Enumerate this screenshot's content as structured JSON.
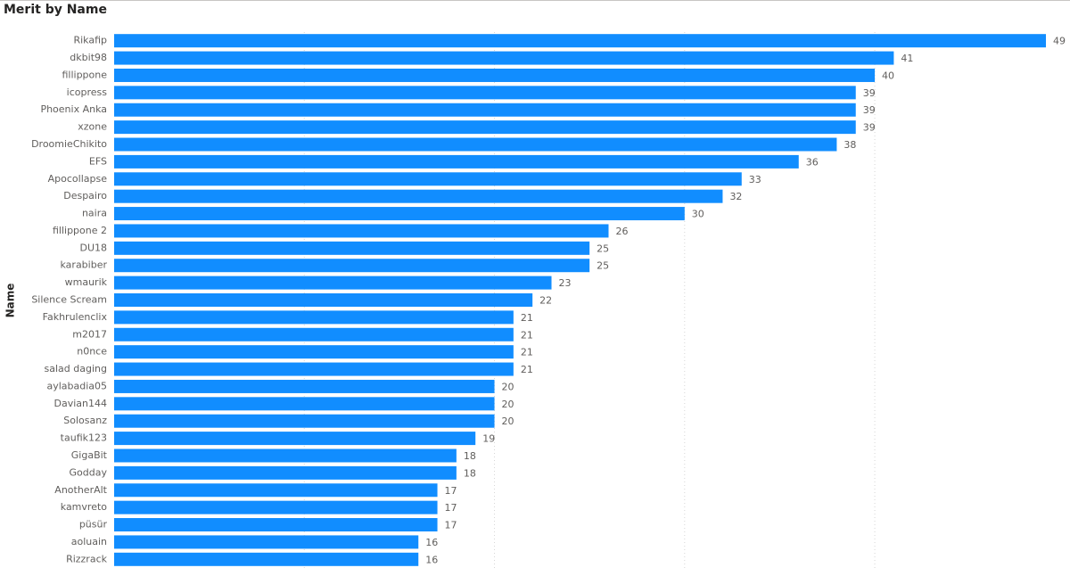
{
  "chart_data": {
    "type": "bar",
    "orientation": "horizontal",
    "title": "Merit by Name",
    "y_label": "Name",
    "categories": [
      "Rikafip",
      "dkbit98",
      "fillippone",
      "icopress",
      "Phoenix Anka",
      "xzone",
      "DroomieChikito",
      "EFS",
      "Apocollapse",
      "Despairo",
      "naira",
      "fillippone 2",
      "DU18",
      "karabiber",
      "wmaurik",
      "Silence Scream",
      "Fakhrulenclix",
      "m2017",
      "n0nce",
      "salad daging",
      "aylabadia05",
      "Davian144",
      "Solosanz",
      "taufik123",
      "GigaBit",
      "Godday",
      "AnotherAlt",
      "kamvreto",
      "püsür",
      "aoluain",
      "Rizzrack"
    ],
    "values": [
      49,
      41,
      40,
      39,
      39,
      39,
      38,
      36,
      33,
      32,
      30,
      26,
      25,
      25,
      23,
      22,
      21,
      21,
      21,
      21,
      20,
      20,
      20,
      19,
      18,
      18,
      17,
      17,
      17,
      16,
      16
    ],
    "color": "#118dff",
    "xlim": [
      0,
      49
    ],
    "xgrid": [
      10,
      20,
      30,
      40
    ],
    "grid": true
  }
}
